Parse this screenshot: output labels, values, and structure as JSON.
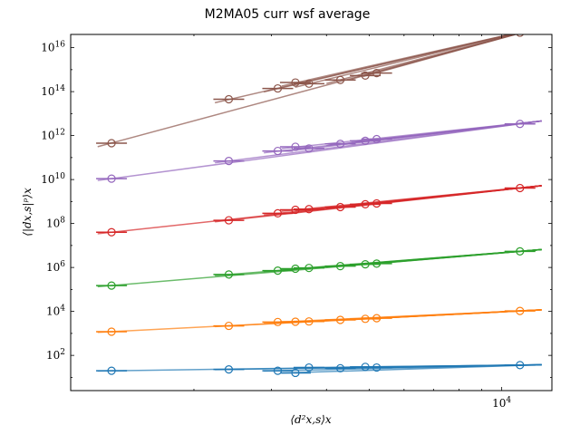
{
  "chart_data": {
    "type": "line",
    "title": "M2MA05 curr wsf average",
    "xlabel": "⟨d²x,s⟩x",
    "ylabel": "⟨|dx,s|ᵖ⟩x",
    "x_scale": "log",
    "y_scale": "log",
    "xlim": [
      1050,
      13000
    ],
    "ylim": [
      2.5,
      4e+16
    ],
    "x_ticks": [
      {
        "value": 10000,
        "base": "10",
        "exp": "4"
      }
    ],
    "y_ticks": [
      {
        "value": 100,
        "base": "10",
        "exp": "2"
      },
      {
        "value": 10000,
        "base": "10",
        "exp": "4"
      },
      {
        "value": 1000000,
        "base": "10",
        "exp": "6"
      },
      {
        "value": 100000000,
        "base": "10",
        "exp": "8"
      },
      {
        "value": 10000000000,
        "base": "10",
        "exp": "10"
      },
      {
        "value": 1000000000000,
        "base": "10",
        "exp": "12"
      },
      {
        "value": 100000000000000,
        "base": "10",
        "exp": "14"
      },
      {
        "value": 10000000000000000,
        "base": "10",
        "exp": "16"
      }
    ],
    "x": [
      1300,
      2400,
      3100,
      3400,
      3650,
      4300,
      4900,
      5200,
      11000
    ],
    "series": [
      {
        "color": "#1f77b4",
        "y": [
          20,
          23,
          20,
          16,
          28,
          26,
          30,
          28,
          36
        ]
      },
      {
        "color": "#ff7f0e",
        "y": [
          1200,
          2200,
          3300,
          3400,
          3500,
          4100,
          4600,
          4900,
          10500
        ]
      },
      {
        "color": "#2ca02c",
        "y": [
          150000,
          480000,
          720000,
          880000,
          950000,
          1150000,
          1400000,
          1500000,
          5400000
        ]
      },
      {
        "color": "#d62728",
        "y": [
          40000000,
          140000000,
          290000000,
          420000000,
          450000000,
          560000000,
          750000000,
          820000000,
          4100000000
        ]
      },
      {
        "color": "#9467bd",
        "y": [
          11000000000,
          70000000000,
          200000000000,
          310000000000,
          260000000000,
          420000000000,
          580000000000,
          690000000000,
          3400000000000
        ]
      },
      {
        "color": "#8c564b",
        "y": [
          450000000000,
          45000000000000,
          140000000000000,
          260000000000000,
          230000000000000,
          340000000000000,
          540000000000000,
          700000000000000,
          48000000000000000
        ]
      }
    ]
  }
}
